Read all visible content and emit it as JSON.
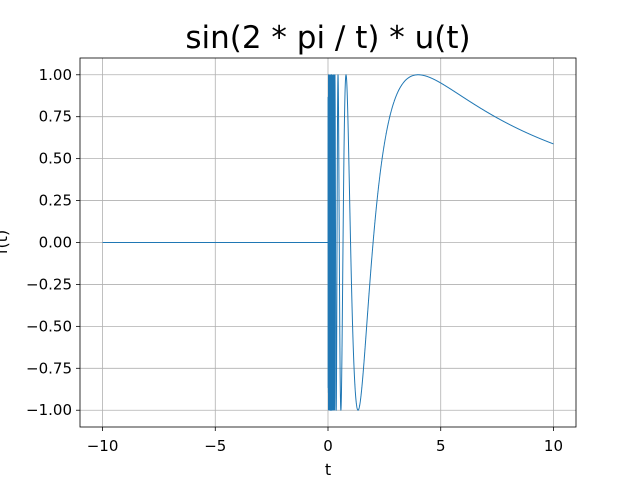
{
  "chart_data": {
    "type": "line",
    "title": "sin(2 * pi / t) * u(t)",
    "xlabel": "t",
    "ylabel": "f(t)",
    "xlim": [
      -11.0,
      11.0
    ],
    "ylim": [
      -1.1,
      1.1
    ],
    "x_ticks": [
      -10,
      -5,
      0,
      5,
      10
    ],
    "x_tick_labels": [
      "−10",
      "−5",
      "0",
      "5",
      "10"
    ],
    "y_ticks": [
      -1.0,
      -0.75,
      -0.5,
      -0.25,
      0.0,
      0.25,
      0.5,
      0.75,
      1.0
    ],
    "y_tick_labels": [
      "−1.00",
      "−0.75",
      "−0.50",
      "−0.25",
      "0.00",
      "0.25",
      "0.50",
      "0.75",
      "1.00"
    ],
    "grid": true,
    "series": [
      {
        "function": "sin(2*pi/t)*u(t)",
        "x_range": [
          -10,
          10
        ],
        "color": "#1f77b4"
      }
    ]
  }
}
